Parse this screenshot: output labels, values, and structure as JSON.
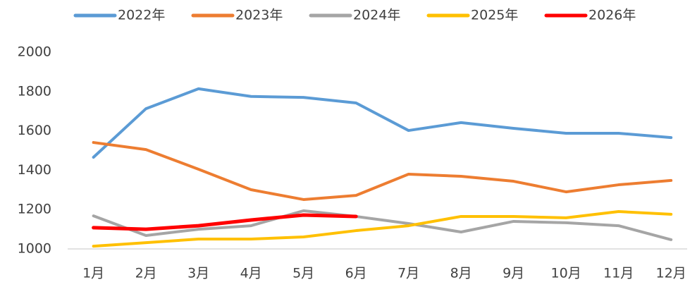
{
  "chart_data": {
    "type": "line",
    "categories": [
      "1月",
      "2月",
      "3月",
      "4月",
      "5月",
      "6月",
      "7月",
      "8月",
      "9月",
      "10月",
      "11月",
      "12月"
    ],
    "series": [
      {
        "name": "2022年",
        "color": "#5b9bd5",
        "values": [
          1466,
          1713,
          1814,
          1775,
          1770,
          1742,
          1602,
          1642,
          1613,
          1588,
          1588,
          1566
        ]
      },
      {
        "name": "2023年",
        "color": "#ed7d31",
        "values": [
          1541,
          1505,
          1405,
          1301,
          1251,
          1272,
          1380,
          1369,
          1344,
          1290,
          1326,
          1348
        ]
      },
      {
        "name": "2024年",
        "color": "#a5a5a5",
        "values": [
          1168,
          1068,
          1100,
          1118,
          1194,
          1165,
          1129,
          1086,
          1140,
          1133,
          1118,
          1047
        ]
      },
      {
        "name": "2025年",
        "color": "#ffc000",
        "values": [
          1014,
          1032,
          1050,
          1050,
          1061,
          1093,
          1118,
          1165,
          1165,
          1158,
          1190,
          1176
        ]
      },
      {
        "name": "2026年",
        "color": "#ff0000",
        "values": [
          1108,
          1100,
          1118,
          1147,
          1172,
          1165,
          null,
          null,
          null,
          null,
          null,
          null
        ]
      }
    ],
    "ylim": [
      1000,
      2000
    ],
    "yticks": [
      1000,
      1200,
      1400,
      1600,
      1800,
      2000
    ],
    "grid": false,
    "legend": "top"
  }
}
